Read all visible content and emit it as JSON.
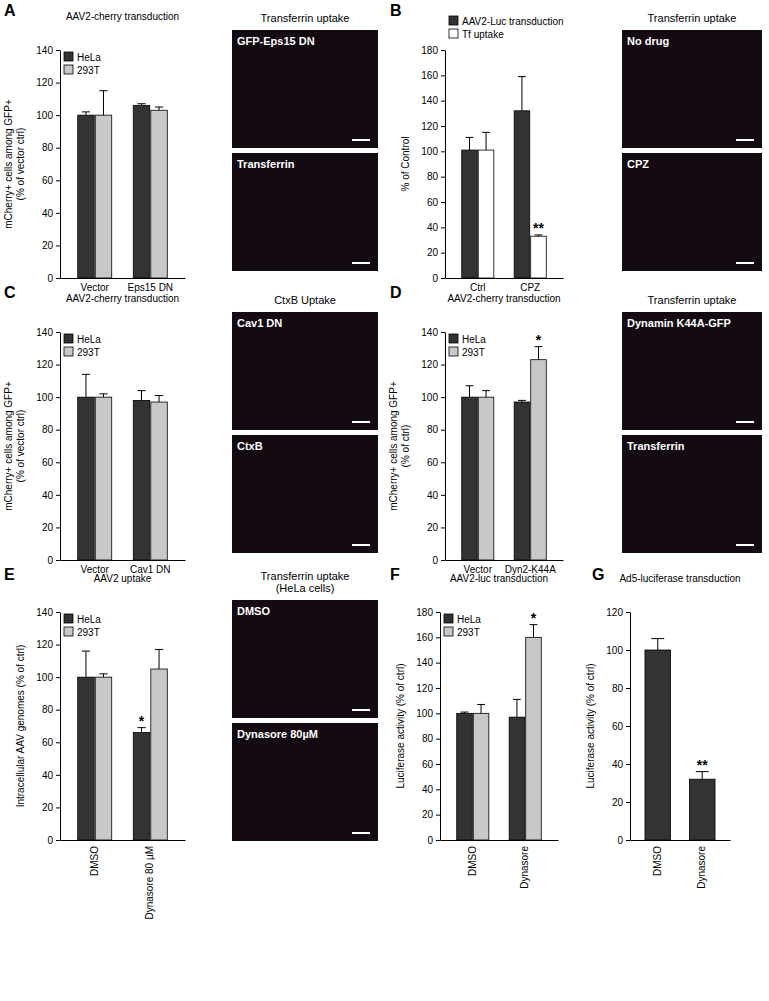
{
  "chart_data": [
    {
      "panel": "A",
      "type": "bar",
      "title": "AAV2-cherry transduction",
      "y_label": [
        "mCherry+ cells among GFP+",
        "(% of vector ctrl)"
      ],
      "categories": [
        "Vector",
        "Eps15 DN"
      ],
      "series": [
        {
          "name": "HeLa",
          "color": "#333333",
          "values": [
            100,
            106
          ],
          "errors": [
            2,
            1
          ]
        },
        {
          "name": "293T",
          "color": "#c8c8c8",
          "values": [
            100,
            103
          ],
          "errors": [
            15,
            2
          ]
        }
      ],
      "ylim": [
        0,
        140
      ],
      "yticks": [
        0,
        20,
        40,
        60,
        80,
        100,
        120,
        140
      ],
      "legend": "top-left",
      "image_title": [
        "Transferrin uptake"
      ],
      "image_labels": [
        "GFP-Eps15 DN",
        "Transferrin"
      ]
    },
    {
      "panel": "B",
      "type": "bar",
      "y_label": [
        "% of Control"
      ],
      "categories": [
        "Ctrl",
        "CPZ"
      ],
      "series": [
        {
          "name": "AAV2-Luc transduction",
          "color": "#333333",
          "values": [
            101,
            132
          ],
          "errors": [
            10,
            27
          ]
        },
        {
          "name": "Tf uptake",
          "color": "#ffffff",
          "values": [
            101,
            33
          ],
          "errors": [
            14,
            1
          ]
        }
      ],
      "ylim": [
        0,
        180
      ],
      "yticks": [
        0,
        20,
        40,
        60,
        80,
        100,
        120,
        140,
        160,
        180
      ],
      "legend": "top",
      "annotations": [
        {
          "text": "**",
          "category": "CPZ",
          "series": "Tf uptake"
        }
      ],
      "image_title": [
        "Transferrin uptake"
      ],
      "image_labels": [
        "No drug",
        "CPZ"
      ]
    },
    {
      "panel": "C",
      "type": "bar",
      "title": "AAV2-cherry transduction",
      "y_label": [
        "mCherry+ cells among GFP+",
        "(% of vector ctrl)"
      ],
      "categories": [
        "Vector",
        "Cav1 DN"
      ],
      "series": [
        {
          "name": "HeLa",
          "color": "#333333",
          "values": [
            100,
            98
          ],
          "errors": [
            14,
            6
          ]
        },
        {
          "name": "293T",
          "color": "#c8c8c8",
          "values": [
            100,
            97
          ],
          "errors": [
            2,
            4
          ]
        }
      ],
      "ylim": [
        0,
        140
      ],
      "yticks": [
        0,
        20,
        40,
        60,
        80,
        100,
        120,
        140
      ],
      "legend": "top-left",
      "image_title": [
        "CtxB Uptake"
      ],
      "image_labels": [
        "Cav1 DN",
        "CtxB"
      ]
    },
    {
      "panel": "D",
      "type": "bar",
      "title": "AAV2-cherry transduction",
      "y_label": [
        "mCherry+ cells among GFP+",
        "(% of ctrl)"
      ],
      "categories": [
        "Vector",
        "Dyn2-K44A"
      ],
      "series": [
        {
          "name": "HeLa",
          "color": "#333333",
          "values": [
            100,
            97
          ],
          "errors": [
            7,
            1
          ]
        },
        {
          "name": "293T",
          "color": "#c8c8c8",
          "values": [
            100,
            123
          ],
          "errors": [
            4,
            8
          ]
        }
      ],
      "ylim": [
        0,
        140
      ],
      "yticks": [
        0,
        20,
        40,
        60,
        80,
        100,
        120,
        140
      ],
      "legend": "top-left",
      "annotations": [
        {
          "text": "*",
          "category": "Dyn2-K44A",
          "series": "293T"
        }
      ],
      "image_title": [
        "Transferrin uptake"
      ],
      "image_labels": [
        "Dynamin K44A-GFP",
        "Transferrin"
      ]
    },
    {
      "panel": "E",
      "type": "bar",
      "title": "AAV2 uptake",
      "y_label": [
        "Intracellular AAV genomes (% of ctrl)"
      ],
      "categories": [
        "DMSO",
        "Dynasore 80 µM"
      ],
      "series": [
        {
          "name": "HeLa",
          "color": "#333333",
          "values": [
            100,
            66
          ],
          "errors": [
            16,
            3
          ]
        },
        {
          "name": "293T",
          "color": "#c8c8c8",
          "values": [
            100,
            105
          ],
          "errors": [
            2,
            12
          ]
        }
      ],
      "ylim": [
        0,
        140
      ],
      "yticks": [
        0,
        20,
        40,
        60,
        80,
        100,
        120,
        140
      ],
      "legend": "top-left",
      "annotations": [
        {
          "text": "*",
          "category": "Dynasore 80 µM",
          "series": "HeLa"
        }
      ],
      "image_title": [
        "Transferrin uptake",
        "(HeLa cells)"
      ],
      "image_labels": [
        "DMSO",
        "Dynasore 80µM"
      ]
    },
    {
      "panel": "F",
      "type": "bar",
      "title": "AAV2-luc transduction",
      "y_label": [
        "Luciferase activity (% of ctrl)"
      ],
      "categories": [
        "DMSO",
        "Dynasore"
      ],
      "series": [
        {
          "name": "HeLa",
          "color": "#333333",
          "values": [
            100,
            97
          ],
          "errors": [
            1,
            14
          ]
        },
        {
          "name": "293T",
          "color": "#c8c8c8",
          "values": [
            100,
            160
          ],
          "errors": [
            7,
            10
          ]
        }
      ],
      "ylim": [
        0,
        180
      ],
      "yticks": [
        0,
        20,
        40,
        60,
        80,
        100,
        120,
        140,
        160,
        180
      ],
      "legend": "top-left",
      "annotations": [
        {
          "text": "*",
          "category": "Dynasore",
          "series": "293T"
        }
      ]
    },
    {
      "panel": "G",
      "type": "bar",
      "title": "Ad5-luciferase transduction",
      "y_label": [
        "Luciferase activity  (% of ctrl)"
      ],
      "categories": [
        "DMSO",
        "Dynasore"
      ],
      "series": [
        {
          "color": "#333333",
          "values": [
            100,
            32
          ],
          "errors": [
            6,
            4
          ]
        }
      ],
      "ylim": [
        0,
        120
      ],
      "yticks": [
        0,
        20,
        40,
        60,
        80,
        100,
        120
      ],
      "annotations": [
        {
          "text": "**",
          "category": "Dynasore"
        }
      ]
    }
  ]
}
